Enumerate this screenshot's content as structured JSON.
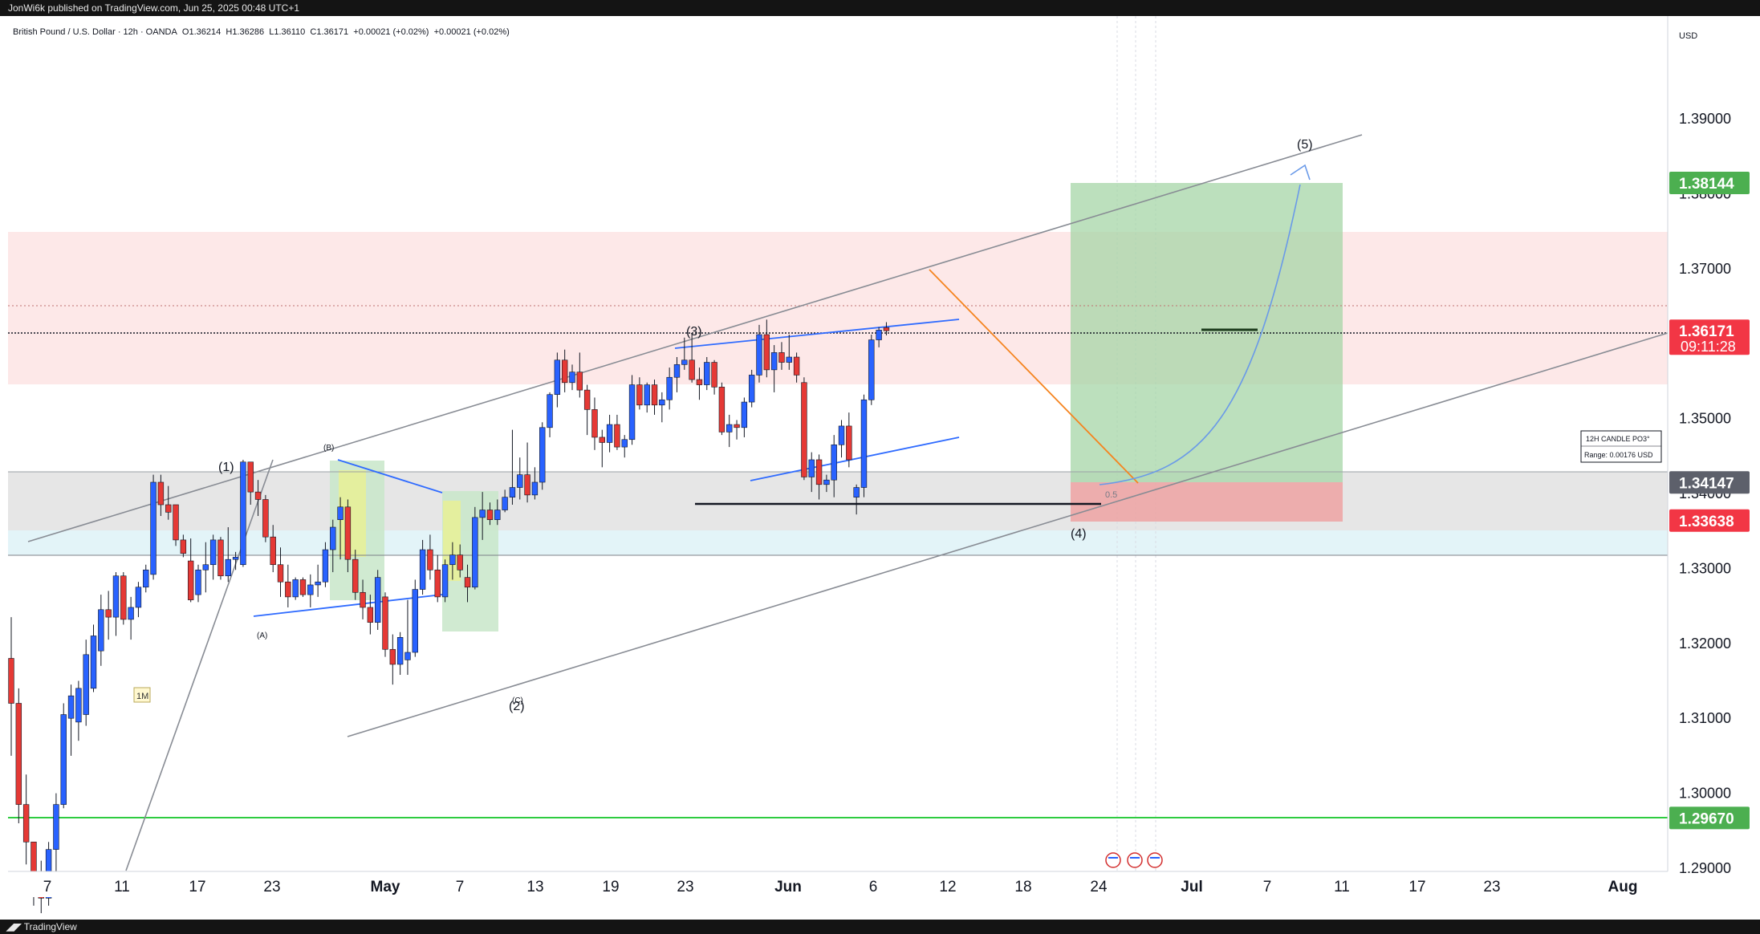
{
  "header": {
    "published": "JonWi6k published on TradingView.com, Jun 25, 2025 00:48 UTC+1"
  },
  "footer": {
    "brand": "TradingView"
  },
  "legend": {
    "symbol": "British Pound / U.S. Dollar · 12h · OANDA",
    "open": "O1.36214",
    "high": "H1.36286",
    "low": "L1.36110",
    "close": "C1.36171",
    "change": "+0.00021 (+0.02%)",
    "change2": "+0.00021 (+0.02%)"
  },
  "axis": {
    "currency": "USD",
    "y_ticks": [
      "1.39000",
      "1.38000",
      "1.37000",
      "1.35000",
      "1.34000",
      "1.33000",
      "1.32000",
      "1.31000",
      "1.30000",
      "1.29000"
    ],
    "x_ticks": [
      "7",
      "11",
      "17",
      "23",
      "May",
      "7",
      "13",
      "19",
      "23",
      "Jun",
      "6",
      "12",
      "18",
      "24",
      "Jul",
      "7",
      "11",
      "17",
      "23",
      "Aug"
    ]
  },
  "price_labels": [
    {
      "value": "1.38144",
      "color": "#4caf50"
    },
    {
      "value": "1.36171",
      "sub": "09:11:28",
      "color": "#f23645"
    },
    {
      "value": "1.34147",
      "color": "#5d606b"
    },
    {
      "value": "1.33638",
      "color": "#f23645"
    },
    {
      "value": "1.29670",
      "color": "#4caf50"
    }
  ],
  "annotations": {
    "wave1": "(1)",
    "wave2": "(2)",
    "wave3": "(3)",
    "wave4": "(4)",
    "wave5": "(5)",
    "waveA": "(A)",
    "waveB": "(B)",
    "waveC": "(C)",
    "fib": "0.5",
    "mark": "1M",
    "info_title": "12H CANDLE PO3°",
    "info_range": "Range: 0.00176 USD"
  },
  "colors": {
    "up": "#2962ff",
    "down": "#e53935",
    "grid": "#f0f3fa"
  },
  "chart_data": {
    "type": "candlestick",
    "title": "British Pound / U.S. Dollar · 12h · OANDA",
    "ylim": [
      1.2895,
      1.3995
    ],
    "last_price": 1.36171,
    "candles": [
      {
        "o": 1.318,
        "h": 1.3235,
        "l": 1.305,
        "c": 1.312
      },
      {
        "o": 1.312,
        "h": 1.314,
        "l": 1.296,
        "c": 1.2985
      },
      {
        "o": 1.2985,
        "h": 1.3025,
        "l": 1.2905,
        "c": 1.2935
      },
      {
        "o": 1.2935,
        "h": 1.2935,
        "l": 1.285,
        "c": 1.288
      },
      {
        "o": 1.288,
        "h": 1.291,
        "l": 1.284,
        "c": 1.286
      },
      {
        "o": 1.286,
        "h": 1.2935,
        "l": 1.285,
        "c": 1.2925
      },
      {
        "o": 1.2925,
        "h": 1.3,
        "l": 1.289,
        "c": 1.2985
      },
      {
        "o": 1.2985,
        "h": 1.312,
        "l": 1.298,
        "c": 1.3105
      },
      {
        "o": 1.31,
        "h": 1.3145,
        "l": 1.305,
        "c": 1.313
      },
      {
        "o": 1.3095,
        "h": 1.315,
        "l": 1.307,
        "c": 1.314
      },
      {
        "o": 1.3105,
        "h": 1.3205,
        "l": 1.309,
        "c": 1.3185
      },
      {
        "o": 1.314,
        "h": 1.3225,
        "l": 1.3135,
        "c": 1.321
      },
      {
        "o": 1.319,
        "h": 1.3265,
        "l": 1.317,
        "c": 1.3245
      },
      {
        "o": 1.3245,
        "h": 1.327,
        "l": 1.3205,
        "c": 1.3235
      },
      {
        "o": 1.3235,
        "h": 1.3295,
        "l": 1.321,
        "c": 1.329
      },
      {
        "o": 1.329,
        "h": 1.3295,
        "l": 1.3225,
        "c": 1.3232
      },
      {
        "o": 1.3232,
        "h": 1.3262,
        "l": 1.3205,
        "c": 1.3248
      },
      {
        "o": 1.3248,
        "h": 1.3282,
        "l": 1.3235,
        "c": 1.3275
      },
      {
        "o": 1.3275,
        "h": 1.3305,
        "l": 1.3268,
        "c": 1.3298
      },
      {
        "o": 1.3292,
        "h": 1.3425,
        "l": 1.3285,
        "c": 1.3415
      },
      {
        "o": 1.3415,
        "h": 1.3425,
        "l": 1.337,
        "c": 1.3385
      },
      {
        "o": 1.3385,
        "h": 1.341,
        "l": 1.3365,
        "c": 1.3375
      },
      {
        "o": 1.3385,
        "h": 1.3385,
        "l": 1.333,
        "c": 1.3338
      },
      {
        "o": 1.3338,
        "h": 1.3345,
        "l": 1.3315,
        "c": 1.332
      },
      {
        "o": 1.331,
        "h": 1.334,
        "l": 1.3255,
        "c": 1.3258
      },
      {
        "o": 1.3265,
        "h": 1.3305,
        "l": 1.3255,
        "c": 1.3298
      },
      {
        "o": 1.3298,
        "h": 1.3335,
        "l": 1.3268,
        "c": 1.3305
      },
      {
        "o": 1.3305,
        "h": 1.3345,
        "l": 1.3285,
        "c": 1.3338
      },
      {
        "o": 1.3338,
        "h": 1.3342,
        "l": 1.3285,
        "c": 1.329
      },
      {
        "o": 1.329,
        "h": 1.3355,
        "l": 1.3282,
        "c": 1.3312
      },
      {
        "o": 1.3312,
        "h": 1.3322,
        "l": 1.3298,
        "c": 1.3315
      },
      {
        "o": 1.3305,
        "h": 1.3445,
        "l": 1.3302,
        "c": 1.3442
      },
      {
        "o": 1.3442,
        "h": 1.3442,
        "l": 1.3385,
        "c": 1.3402
      },
      {
        "o": 1.3402,
        "h": 1.3418,
        "l": 1.337,
        "c": 1.3392
      },
      {
        "o": 1.3392,
        "h": 1.3398,
        "l": 1.3335,
        "c": 1.3342
      },
      {
        "o": 1.3342,
        "h": 1.3358,
        "l": 1.3295,
        "c": 1.3305
      },
      {
        "o": 1.3305,
        "h": 1.3328,
        "l": 1.3262,
        "c": 1.3282
      },
      {
        "o": 1.3282,
        "h": 1.3305,
        "l": 1.3248,
        "c": 1.3262
      },
      {
        "o": 1.3262,
        "h": 1.3288,
        "l": 1.3258,
        "c": 1.3285
      },
      {
        "o": 1.3285,
        "h": 1.3288,
        "l": 1.3262,
        "c": 1.3265
      },
      {
        "o": 1.3265,
        "h": 1.3292,
        "l": 1.3248,
        "c": 1.3278
      },
      {
        "o": 1.3278,
        "h": 1.3305,
        "l": 1.3262,
        "c": 1.3282
      },
      {
        "o": 1.3282,
        "h": 1.3335,
        "l": 1.3275,
        "c": 1.3325
      },
      {
        "o": 1.3325,
        "h": 1.3365,
        "l": 1.3295,
        "c": 1.3355
      },
      {
        "o": 1.3365,
        "h": 1.3395,
        "l": 1.3312,
        "c": 1.3382
      },
      {
        "o": 1.3382,
        "h": 1.3392,
        "l": 1.3295,
        "c": 1.3312
      },
      {
        "o": 1.3312,
        "h": 1.3325,
        "l": 1.3258,
        "c": 1.3268
      },
      {
        "o": 1.3268,
        "h": 1.3285,
        "l": 1.3232,
        "c": 1.3248
      },
      {
        "o": 1.3248,
        "h": 1.3265,
        "l": 1.3212,
        "c": 1.3228
      },
      {
        "o": 1.3228,
        "h": 1.3298,
        "l": 1.3218,
        "c": 1.3288
      },
      {
        "o": 1.3262,
        "h": 1.3268,
        "l": 1.3182,
        "c": 1.3192
      },
      {
        "o": 1.3192,
        "h": 1.3212,
        "l": 1.3145,
        "c": 1.3172
      },
      {
        "o": 1.3172,
        "h": 1.3215,
        "l": 1.3158,
        "c": 1.3208
      },
      {
        "o": 1.3178,
        "h": 1.3258,
        "l": 1.3158,
        "c": 1.3188
      },
      {
        "o": 1.3188,
        "h": 1.3285,
        "l": 1.3182,
        "c": 1.3272
      },
      {
        "o": 1.3272,
        "h": 1.3338,
        "l": 1.3265,
        "c": 1.3325
      },
      {
        "o": 1.3325,
        "h": 1.3345,
        "l": 1.3285,
        "c": 1.3298
      },
      {
        "o": 1.3298,
        "h": 1.3318,
        "l": 1.3255,
        "c": 1.3262
      },
      {
        "o": 1.3262,
        "h": 1.3312,
        "l": 1.3255,
        "c": 1.3305
      },
      {
        "o": 1.3305,
        "h": 1.3335,
        "l": 1.3285,
        "c": 1.3318
      },
      {
        "o": 1.3318,
        "h": 1.3332,
        "l": 1.3288,
        "c": 1.3298
      },
      {
        "o": 1.3288,
        "h": 1.3305,
        "l": 1.3255,
        "c": 1.3275
      },
      {
        "o": 1.3275,
        "h": 1.3382,
        "l": 1.3272,
        "c": 1.3368
      },
      {
        "o": 1.3368,
        "h": 1.3402,
        "l": 1.3338,
        "c": 1.3378
      },
      {
        "o": 1.3378,
        "h": 1.3388,
        "l": 1.3358,
        "c": 1.3365
      },
      {
        "o": 1.3365,
        "h": 1.3392,
        "l": 1.3358,
        "c": 1.3378
      },
      {
        "o": 1.3378,
        "h": 1.3405,
        "l": 1.3375,
        "c": 1.3395
      },
      {
        "o": 1.3395,
        "h": 1.3485,
        "l": 1.3385,
        "c": 1.3408
      },
      {
        "o": 1.3408,
        "h": 1.3448,
        "l": 1.3392,
        "c": 1.3425
      },
      {
        "o": 1.3425,
        "h": 1.3468,
        "l": 1.3388,
        "c": 1.3398
      },
      {
        "o": 1.3398,
        "h": 1.3435,
        "l": 1.3392,
        "c": 1.3415
      },
      {
        "o": 1.3415,
        "h": 1.3495,
        "l": 1.3405,
        "c": 1.3488
      },
      {
        "o": 1.3488,
        "h": 1.3535,
        "l": 1.3475,
        "c": 1.3532
      },
      {
        "o": 1.3532,
        "h": 1.3588,
        "l": 1.3515,
        "c": 1.3578
      },
      {
        "o": 1.3578,
        "h": 1.3592,
        "l": 1.3535,
        "c": 1.3548
      },
      {
        "o": 1.3548,
        "h": 1.3572,
        "l": 1.3538,
        "c": 1.3562
      },
      {
        "o": 1.3562,
        "h": 1.3588,
        "l": 1.3528,
        "c": 1.3538
      },
      {
        "o": 1.3538,
        "h": 1.3545,
        "l": 1.3478,
        "c": 1.3512
      },
      {
        "o": 1.3512,
        "h": 1.3528,
        "l": 1.3458,
        "c": 1.3475
      },
      {
        "o": 1.3475,
        "h": 1.3485,
        "l": 1.3435,
        "c": 1.3468
      },
      {
        "o": 1.3468,
        "h": 1.3505,
        "l": 1.3455,
        "c": 1.3492
      },
      {
        "o": 1.3492,
        "h": 1.3505,
        "l": 1.3458,
        "c": 1.3462
      },
      {
        "o": 1.3462,
        "h": 1.3478,
        "l": 1.3448,
        "c": 1.3472
      },
      {
        "o": 1.3472,
        "h": 1.3558,
        "l": 1.3465,
        "c": 1.3545
      },
      {
        "o": 1.3545,
        "h": 1.3555,
        "l": 1.3512,
        "c": 1.3518
      },
      {
        "o": 1.3518,
        "h": 1.3548,
        "l": 1.3508,
        "c": 1.3545
      },
      {
        "o": 1.3545,
        "h": 1.3552,
        "l": 1.3505,
        "c": 1.3518
      },
      {
        "o": 1.3518,
        "h": 1.3535,
        "l": 1.3495,
        "c": 1.3525
      },
      {
        "o": 1.3525,
        "h": 1.3568,
        "l": 1.3512,
        "c": 1.3555
      },
      {
        "o": 1.3555,
        "h": 1.3582,
        "l": 1.3535,
        "c": 1.3572
      },
      {
        "o": 1.3572,
        "h": 1.3608,
        "l": 1.3565,
        "c": 1.3578
      },
      {
        "o": 1.3578,
        "h": 1.3612,
        "l": 1.3548,
        "c": 1.3552
      },
      {
        "o": 1.3552,
        "h": 1.3568,
        "l": 1.3525,
        "c": 1.3545
      },
      {
        "o": 1.3545,
        "h": 1.3582,
        "l": 1.3538,
        "c": 1.3575
      },
      {
        "o": 1.3575,
        "h": 1.3578,
        "l": 1.3532,
        "c": 1.3542
      },
      {
        "o": 1.3542,
        "h": 1.3548,
        "l": 1.3478,
        "c": 1.3482
      },
      {
        "o": 1.3482,
        "h": 1.3505,
        "l": 1.3462,
        "c": 1.3492
      },
      {
        "o": 1.3492,
        "h": 1.3498,
        "l": 1.3472,
        "c": 1.3488
      },
      {
        "o": 1.3488,
        "h": 1.3528,
        "l": 1.3475,
        "c": 1.3522
      },
      {
        "o": 1.3522,
        "h": 1.3565,
        "l": 1.3515,
        "c": 1.3558
      },
      {
        "o": 1.3558,
        "h": 1.3625,
        "l": 1.3548,
        "c": 1.3612
      },
      {
        "o": 1.3612,
        "h": 1.3632,
        "l": 1.3555,
        "c": 1.3565
      },
      {
        "o": 1.3565,
        "h": 1.3598,
        "l": 1.3535,
        "c": 1.3588
      },
      {
        "o": 1.3588,
        "h": 1.3602,
        "l": 1.3565,
        "c": 1.3575
      },
      {
        "o": 1.3575,
        "h": 1.3612,
        "l": 1.3565,
        "c": 1.3582
      },
      {
        "o": 1.3582,
        "h": 1.3588,
        "l": 1.3548,
        "c": 1.3558
      },
      {
        "o": 1.3548,
        "h": 1.3555,
        "l": 1.3418,
        "c": 1.3422
      },
      {
        "o": 1.3422,
        "h": 1.3455,
        "l": 1.3402,
        "c": 1.3445
      },
      {
        "o": 1.3445,
        "h": 1.3452,
        "l": 1.3392,
        "c": 1.3412
      },
      {
        "o": 1.3412,
        "h": 1.3425,
        "l": 1.3402,
        "c": 1.3418
      },
      {
        "o": 1.3418,
        "h": 1.3478,
        "l": 1.3395,
        "c": 1.3465
      },
      {
        "o": 1.3465,
        "h": 1.3498,
        "l": 1.3448,
        "c": 1.349
      },
      {
        "o": 1.349,
        "h": 1.3508,
        "l": 1.3435,
        "c": 1.3445
      },
      {
        "o": 1.3395,
        "h": 1.3412,
        "l": 1.3372,
        "c": 1.3408
      },
      {
        "o": 1.3408,
        "h": 1.3532,
        "l": 1.3395,
        "c": 1.3525
      },
      {
        "o": 1.3525,
        "h": 1.3612,
        "l": 1.3518,
        "c": 1.3605
      },
      {
        "o": 1.3605,
        "h": 1.3622,
        "l": 1.3595,
        "c": 1.3618
      },
      {
        "o": 1.36214,
        "h": 1.36286,
        "l": 1.3611,
        "c": 1.36171
      }
    ],
    "levels": {
      "take_profit": 1.38144,
      "current": 1.36171,
      "entry": 1.34147,
      "stop": 1.33638,
      "support": 1.2967
    },
    "waves": [
      "(1)",
      "(2)",
      "(3)",
      "(4)",
      "(5)",
      "(A)",
      "(B)",
      "(C)"
    ]
  }
}
